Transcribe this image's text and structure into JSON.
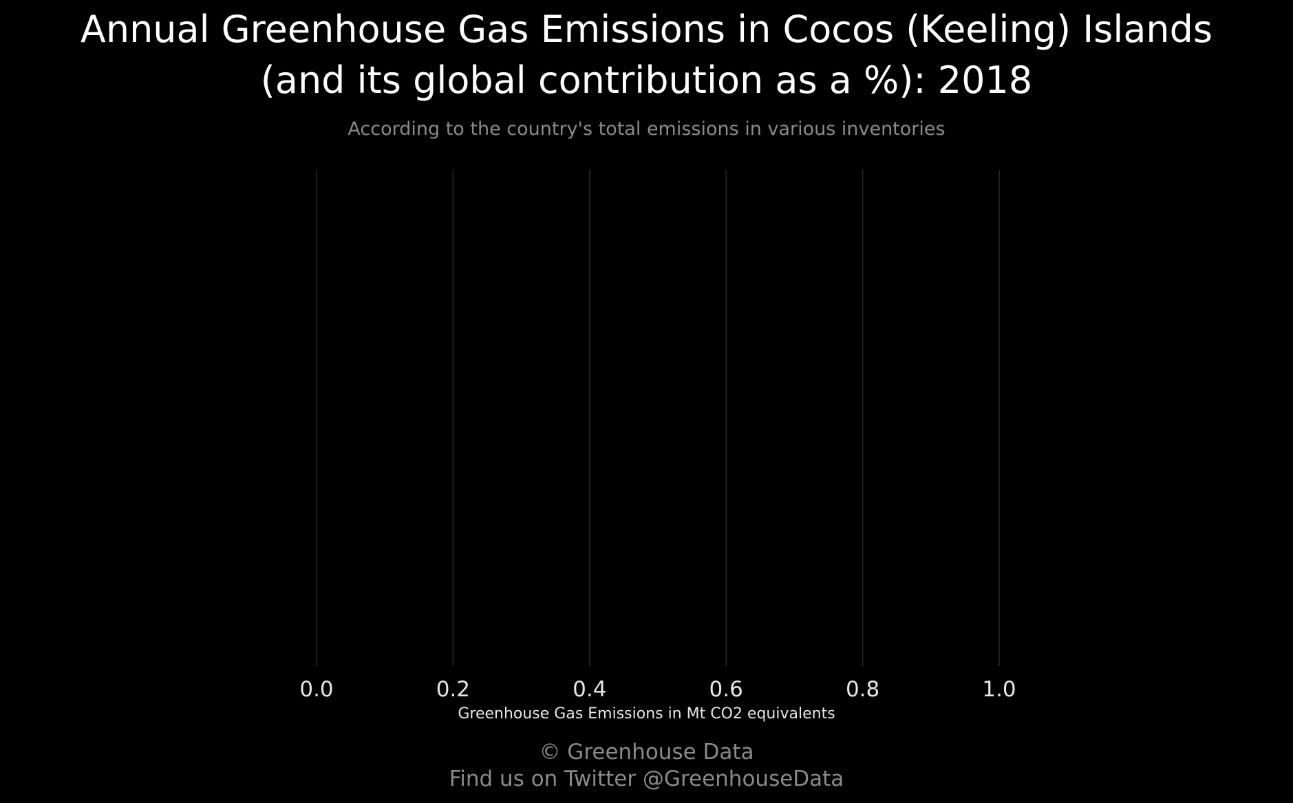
{
  "title_lines": [
    "Annual Greenhouse Gas Emissions in Cocos (Keeling) Islands",
    "(and its global contribution as a %): 2018"
  ],
  "subtitle": "According to the country's total emissions in various inventories",
  "footer": {
    "copyright": "© Greenhouse Data",
    "twitter": "Find us on Twitter @GreenhouseData"
  },
  "colors": {
    "background": "#000000",
    "gridline": "#2a2a2a",
    "title": "#ffffff",
    "muted": "#8a8a8a",
    "axis_text": "#e6e6e6"
  },
  "chart_data": {
    "type": "bar",
    "orientation": "horizontal",
    "title": "Annual Greenhouse Gas Emissions in Cocos (Keeling) Islands (and its global contribution as a %): 2018",
    "subtitle": "According to the country's total emissions in various inventories",
    "xlabel": "Greenhouse Gas Emissions in Mt CO2 equivalents",
    "ylabel": "",
    "categories": [],
    "values": [],
    "xlim": [
      0,
      1
    ],
    "x_ticks": [
      "0.0",
      "0.2",
      "0.4",
      "0.6",
      "0.8",
      "1.0"
    ],
    "grid": "vertical",
    "legend": "none"
  }
}
